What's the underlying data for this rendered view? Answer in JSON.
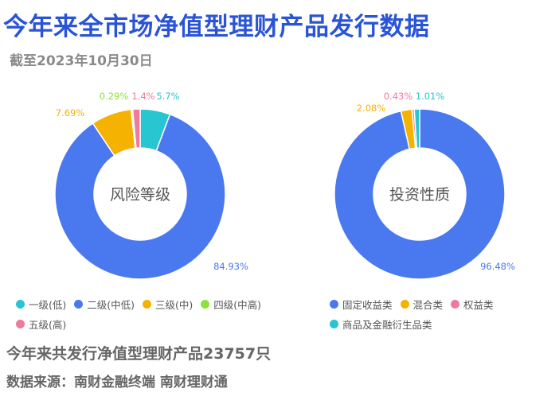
{
  "header": {
    "title": "今年来全市场净值型理财产品发行数据",
    "subtitle": "截至2023年10月30日"
  },
  "chart_data": [
    {
      "type": "pie",
      "donut": true,
      "center_label": "风险等级",
      "legend_position": "bottom",
      "series": [
        {
          "name": "一级(低)",
          "value": 5.7,
          "label": "5.7%",
          "color": "#27c6d1"
        },
        {
          "name": "二级(中低)",
          "value": 84.93,
          "label": "84.93%",
          "color": "#4a78ee"
        },
        {
          "name": "三级(中)",
          "value": 7.69,
          "label": "7.69%",
          "color": "#f5b200"
        },
        {
          "name": "四级(中高)",
          "value": 0.29,
          "label": "0.29%",
          "color": "#8ee03a"
        },
        {
          "name": "五级(高)",
          "value": 1.4,
          "label": "1.4%",
          "color": "#f07a9c"
        }
      ]
    },
    {
      "type": "pie",
      "donut": true,
      "center_label": "投资性质",
      "legend_position": "bottom",
      "series": [
        {
          "name": "固定收益类",
          "value": 96.48,
          "label": "96.48%",
          "color": "#4a78ee"
        },
        {
          "name": "混合类",
          "value": 2.08,
          "label": "2.08%",
          "color": "#f5b200"
        },
        {
          "name": "权益类",
          "value": 0.43,
          "label": "0.43%",
          "color": "#f07a9c"
        },
        {
          "name": "商品及金融衍生品类",
          "value": 1.01,
          "label": "1.01%",
          "color": "#27c6d1"
        }
      ]
    }
  ],
  "footer": {
    "summary": "今年来共发行净值型理财产品23757只",
    "source": "数据来源：南财金融终端 南财理财通"
  }
}
